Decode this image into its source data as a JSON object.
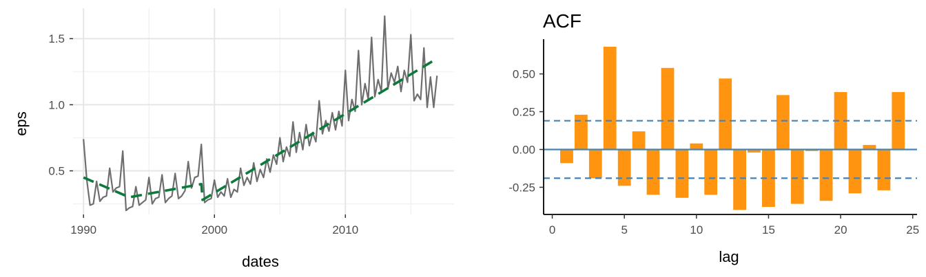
{
  "chart_data": [
    {
      "type": "line",
      "title": "",
      "xlabel": "dates",
      "ylabel": "eps",
      "xlim": [
        1989.2,
        2018.3
      ],
      "ylim": [
        0.17,
        1.73
      ],
      "x_ticks": [
        1990,
        2000,
        2010
      ],
      "x_tick_labels": [
        "1990",
        "2000",
        "2010"
      ],
      "y_ticks": [
        0.5,
        1.0,
        1.5
      ],
      "y_tick_labels": [
        "0.5",
        "1.0",
        "1.5"
      ],
      "grid": true,
      "series": [
        {
          "color": "#6e6e6e",
          "style": "solid",
          "points": [
            [
              1990.0,
              0.74
            ],
            [
              1990.25,
              0.43
            ],
            [
              1990.5,
              0.24
            ],
            [
              1990.75,
              0.25
            ],
            [
              1991.0,
              0.42
            ],
            [
              1991.25,
              0.27
            ],
            [
              1991.5,
              0.3
            ],
            [
              1991.75,
              0.31
            ],
            [
              1992.0,
              0.52
            ],
            [
              1992.25,
              0.34
            ],
            [
              1992.5,
              0.37
            ],
            [
              1992.75,
              0.38
            ],
            [
              1993.0,
              0.65
            ],
            [
              1993.25,
              0.2
            ],
            [
              1993.5,
              0.22
            ],
            [
              1993.75,
              0.23
            ],
            [
              1994.0,
              0.38
            ],
            [
              1994.25,
              0.24
            ],
            [
              1994.5,
              0.26
            ],
            [
              1994.75,
              0.28
            ],
            [
              1995.0,
              0.45
            ],
            [
              1995.25,
              0.25
            ],
            [
              1995.5,
              0.29
            ],
            [
              1995.75,
              0.3
            ],
            [
              1996.0,
              0.47
            ],
            [
              1996.25,
              0.26
            ],
            [
              1996.5,
              0.29
            ],
            [
              1996.75,
              0.31
            ],
            [
              1997.0,
              0.48
            ],
            [
              1997.25,
              0.29
            ],
            [
              1997.5,
              0.31
            ],
            [
              1997.75,
              0.35
            ],
            [
              1998.0,
              0.57
            ],
            [
              1998.25,
              0.37
            ],
            [
              1998.5,
              0.45
            ],
            [
              1998.75,
              0.46
            ],
            [
              1999.0,
              0.7
            ],
            [
              1999.25,
              0.26
            ],
            [
              1999.5,
              0.28
            ],
            [
              1999.75,
              0.29
            ],
            [
              2000.0,
              0.43
            ],
            [
              2000.25,
              0.3
            ],
            [
              2000.5,
              0.34
            ],
            [
              2000.75,
              0.31
            ],
            [
              2001.0,
              0.44
            ],
            [
              2001.25,
              0.3
            ],
            [
              2001.5,
              0.36
            ],
            [
              2001.75,
              0.34
            ],
            [
              2002.0,
              0.52
            ],
            [
              2002.25,
              0.39
            ],
            [
              2002.5,
              0.45
            ],
            [
              2002.75,
              0.4
            ],
            [
              2003.0,
              0.56
            ],
            [
              2003.25,
              0.42
            ],
            [
              2003.5,
              0.51
            ],
            [
              2003.75,
              0.45
            ],
            [
              2004.0,
              0.59
            ],
            [
              2004.25,
              0.49
            ],
            [
              2004.5,
              0.62
            ],
            [
              2004.75,
              0.55
            ],
            [
              2005.0,
              0.75
            ],
            [
              2005.25,
              0.57
            ],
            [
              2005.5,
              0.68
            ],
            [
              2005.75,
              0.61
            ],
            [
              2006.0,
              0.87
            ],
            [
              2006.25,
              0.64
            ],
            [
              2006.5,
              0.79
            ],
            [
              2006.75,
              0.66
            ],
            [
              2007.0,
              0.85
            ],
            [
              2007.25,
              0.69
            ],
            [
              2007.5,
              0.79
            ],
            [
              2007.75,
              0.72
            ],
            [
              2008.0,
              1.03
            ],
            [
              2008.25,
              0.78
            ],
            [
              2008.5,
              0.88
            ],
            [
              2008.75,
              0.8
            ],
            [
              2009.0,
              0.94
            ],
            [
              2009.25,
              0.81
            ],
            [
              2009.5,
              0.95
            ],
            [
              2009.75,
              0.84
            ],
            [
              2010.0,
              1.26
            ],
            [
              2010.25,
              0.88
            ],
            [
              2010.5,
              1.04
            ],
            [
              2010.75,
              0.95
            ],
            [
              2011.0,
              1.41
            ],
            [
              2011.25,
              1.0
            ],
            [
              2011.5,
              1.16
            ],
            [
              2011.75,
              1.04
            ],
            [
              2012.0,
              1.51
            ],
            [
              2012.25,
              1.06
            ],
            [
              2012.5,
              1.19
            ],
            [
              2012.75,
              1.1
            ],
            [
              2013.0,
              1.67
            ],
            [
              2013.25,
              1.12
            ],
            [
              2013.5,
              1.24
            ],
            [
              2013.75,
              1.17
            ],
            [
              2014.0,
              1.29
            ],
            [
              2014.25,
              1.1
            ],
            [
              2014.5,
              1.26
            ],
            [
              2014.75,
              1.17
            ],
            [
              2015.0,
              1.53
            ],
            [
              2015.25,
              1.03
            ],
            [
              2015.5,
              1.08
            ],
            [
              2015.75,
              1.04
            ],
            [
              2016.0,
              1.43
            ],
            [
              2016.25,
              0.98
            ],
            [
              2016.5,
              1.21
            ],
            [
              2016.75,
              0.98
            ],
            [
              2017.0,
              1.22
            ]
          ]
        },
        {
          "color": "#0b7a3a",
          "style": "dashed",
          "points": [
            [
              1990.0,
              0.45
            ],
            [
              1993.5,
              0.3
            ],
            [
              1999.0,
              0.4
            ],
            [
              1999.1,
              0.28
            ],
            [
              2017.0,
              1.35
            ]
          ]
        }
      ]
    },
    {
      "type": "bar",
      "title": "ACF",
      "xlabel": "lag",
      "ylabel": "",
      "xlim": [
        -0.6,
        25.3
      ],
      "ylim": [
        -0.43,
        0.73
      ],
      "x_ticks": [
        0,
        5,
        10,
        15,
        20,
        25
      ],
      "x_tick_labels": [
        "0",
        "5",
        "10",
        "15",
        "20",
        "25"
      ],
      "y_ticks": [
        -0.25,
        0.0,
        0.25,
        0.5
      ],
      "y_tick_labels": [
        "-0.25",
        "0.00",
        "0.25",
        "0.50"
      ],
      "grid": false,
      "bar_color": "#ff9410",
      "zero_line_color": "#4682b4",
      "bound_line_color": "#4682b4",
      "confidence_bound": 0.19,
      "categories": [
        1,
        2,
        3,
        4,
        5,
        6,
        7,
        8,
        9,
        10,
        11,
        12,
        13,
        14,
        15,
        16,
        17,
        18,
        19,
        20,
        21,
        22,
        23,
        24
      ],
      "values": [
        -0.09,
        0.23,
        -0.19,
        0.68,
        -0.24,
        0.12,
        -0.3,
        0.54,
        -0.32,
        0.04,
        -0.3,
        0.47,
        -0.4,
        -0.02,
        -0.38,
        0.36,
        -0.36,
        -0.01,
        -0.34,
        0.38,
        -0.29,
        0.03,
        -0.27,
        0.38
      ]
    }
  ]
}
